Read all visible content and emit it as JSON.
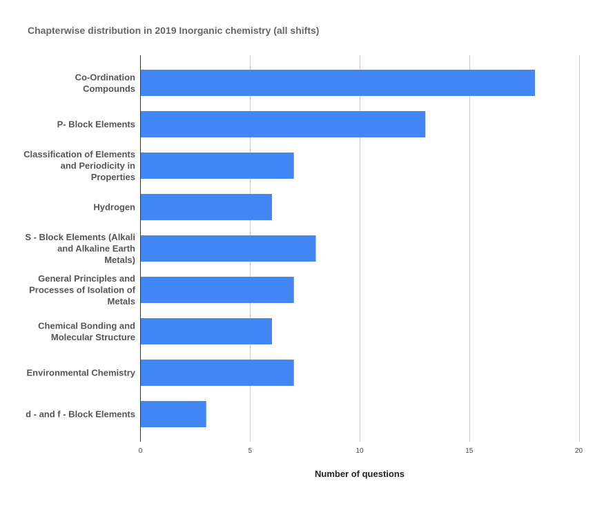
{
  "chart_data": {
    "type": "bar",
    "orientation": "horizontal",
    "title": "Chapterwise distribution in 2019 Inorganic chemistry (all shifts)",
    "xlabel": "Number of questions",
    "ylabel": "",
    "xlim": [
      0,
      20
    ],
    "xticks": [
      0,
      5,
      10,
      15,
      20
    ],
    "grid": true,
    "legend": "none",
    "bar_color": "#4285f4",
    "categories": [
      [
        "Co-Ordination",
        "Compounds"
      ],
      [
        "P- Block Elements"
      ],
      [
        "Classification of Elements",
        "and Periodicity in",
        "Properties"
      ],
      [
        "Hydrogen"
      ],
      [
        "S - Block Elements (Alkali",
        "and Alkaline Earth",
        "Metals)"
      ],
      [
        "General Principles and",
        "Processes of Isolation of",
        "Metals"
      ],
      [
        "Chemical Bonding and",
        "Molecular Structure"
      ],
      [
        "Environmental Chemistry"
      ],
      [
        "d - and f - Block Elements"
      ]
    ],
    "values": [
      18,
      13,
      7,
      6,
      8,
      7,
      6,
      7,
      3
    ]
  }
}
